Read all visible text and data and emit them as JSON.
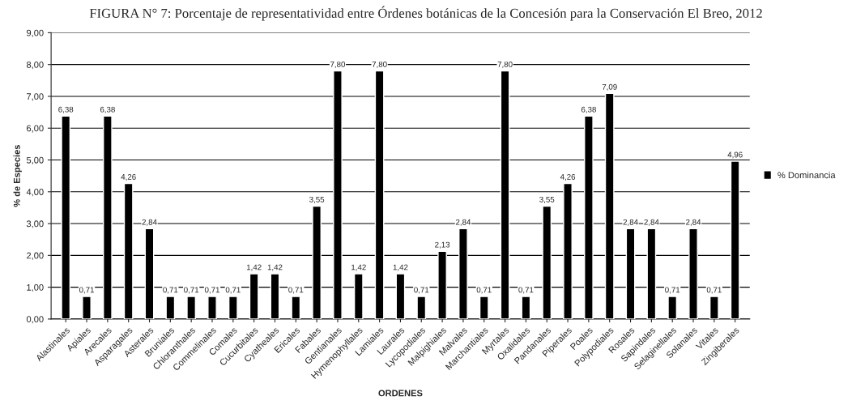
{
  "chart_data": {
    "type": "bar",
    "title": "FIGURA N° 7: Porcentaje de representatividad entre Órdenes botánicas de la Concesión para la Conservación El Breo, 2012",
    "xlabel": "ORDENES",
    "ylabel": "% de Especies",
    "categories": [
      "Alastinales",
      "Apiales",
      "Arecales",
      "Asparagales",
      "Asterales",
      "Bruniales",
      "Chloranthales",
      "Commelinales",
      "Comales",
      "Cucurbitales",
      "Cyatheales",
      "Ericales",
      "Fabales",
      "Gentianales",
      "Hymenophyllales",
      "Lamiales",
      "Laurales",
      "Lycopodiales",
      "Malpighiales",
      "Malvales",
      "Marchantiales",
      "Myrtales",
      "Oxalidales",
      "Pandanales",
      "Piperales",
      "Poales",
      "Polypodiales",
      "Rosales",
      "Sapindales",
      "Selaginellales",
      "Solanales",
      "Vitales",
      "Zingiberales"
    ],
    "series": [
      {
        "name": "% Dominancia",
        "color": "#000000",
        "values": [
          6.38,
          0.71,
          6.38,
          4.26,
          2.84,
          0.71,
          0.71,
          0.71,
          0.71,
          1.42,
          1.42,
          0.71,
          3.55,
          7.8,
          1.42,
          7.8,
          1.42,
          0.71,
          2.13,
          2.84,
          0.71,
          7.8,
          0.71,
          3.55,
          4.26,
          6.38,
          7.09,
          2.84,
          2.84,
          0.71,
          2.84,
          0.71,
          4.96
        ],
        "value_labels": [
          "6,38",
          "0,71",
          "6,38",
          "4,26",
          "2,84",
          "0,71",
          "0,71",
          "0,71",
          "0,71",
          "1,42",
          "1,42",
          "0,71",
          "3,55",
          "7,80",
          "1,42",
          "7,80",
          "1,42",
          "0,71",
          "2,13",
          "2,84",
          "0,71",
          "7,80",
          "0,71",
          "3,55",
          "4,26",
          "6,38",
          "7,09",
          "2,84",
          "2,84",
          "0,71",
          "2,84",
          "0,71",
          "4,96"
        ]
      }
    ],
    "ylim": [
      0,
      9
    ],
    "yticks": [
      {
        "value": 0,
        "label": "0,00"
      },
      {
        "value": 1,
        "label": "1,00"
      },
      {
        "value": 2,
        "label": "2,00"
      },
      {
        "value": 3,
        "label": "3,00"
      },
      {
        "value": 4,
        "label": "4,00"
      },
      {
        "value": 5,
        "label": "5,00"
      },
      {
        "value": 6,
        "label": "6,00"
      },
      {
        "value": 7,
        "label": "7,00"
      },
      {
        "value": 8,
        "label": "8,00"
      },
      {
        "value": 9,
        "label": "9,00"
      }
    ],
    "grid": "y",
    "legend": "right"
  }
}
